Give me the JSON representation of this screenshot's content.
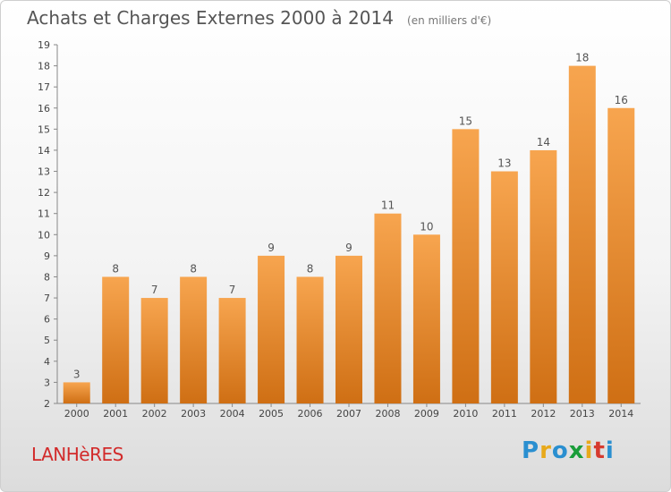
{
  "header": {
    "title": "Achats et Charges Externes 2000 à 2014",
    "subtitle": "(en milliers d'€)"
  },
  "footer": {
    "place": "LANHèRES",
    "logo": {
      "letters": [
        "P",
        "r",
        "o",
        "x",
        "i",
        "t",
        "i"
      ],
      "colors": [
        "#2a8fd0",
        "#e8a91a",
        "#2a8fd0",
        "#1a9d3a",
        "#e8a91a",
        "#d63a2e",
        "#2a8fd0"
      ]
    }
  },
  "chart_data": {
    "type": "bar",
    "title": "Achats et Charges Externes 2000 à 2014",
    "subtitle": "(en milliers d'€)",
    "categories": [
      "2000",
      "2001",
      "2002",
      "2003",
      "2004",
      "2005",
      "2006",
      "2007",
      "2008",
      "2009",
      "2010",
      "2011",
      "2012",
      "2013",
      "2014"
    ],
    "values": [
      3,
      8,
      7,
      8,
      7,
      9,
      8,
      9,
      11,
      10,
      15,
      13,
      14,
      18,
      16
    ],
    "ylim": [
      2,
      19
    ],
    "yticks": [
      2,
      3,
      4,
      5,
      6,
      7,
      8,
      9,
      10,
      11,
      12,
      13,
      14,
      15,
      16,
      17,
      18,
      19
    ],
    "grid": false,
    "colors": {
      "bar_light": "#f7a54f",
      "bar_dark": "#cf6f14",
      "axis": "#888888"
    }
  }
}
